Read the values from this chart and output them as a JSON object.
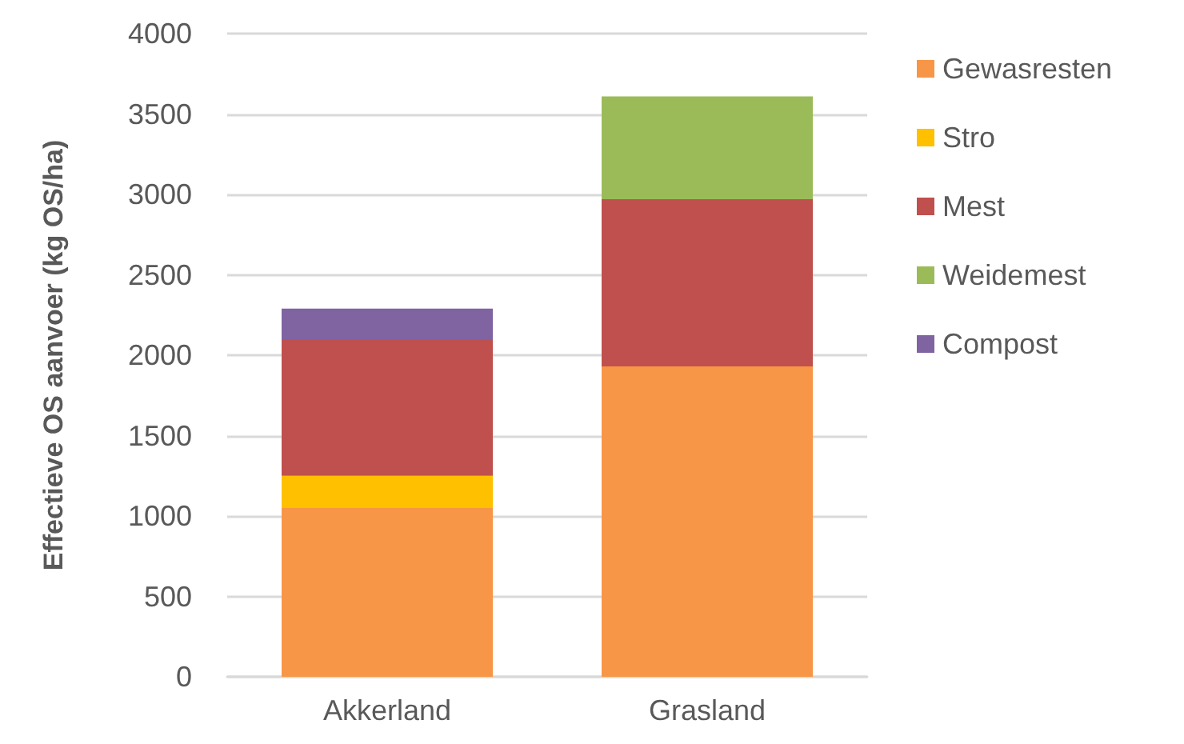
{
  "chart_data": {
    "type": "bar",
    "stacked": true,
    "ylabel": "Effectieve OS aanvoer (kg OS/ha)",
    "categories": [
      "Akkerland",
      "Grasland"
    ],
    "series": [
      {
        "name": "Gewasresten",
        "color": "#f79646",
        "values": [
          1050,
          1930
        ]
      },
      {
        "name": "Stro",
        "color": "#ffc000",
        "values": [
          200,
          null
        ]
      },
      {
        "name": "Mest",
        "color": "#c0504d",
        "values": [
          850,
          1040
        ]
      },
      {
        "name": "Weidemest",
        "color": "#9bbb59",
        "values": [
          null,
          640
        ]
      },
      {
        "name": "Compost",
        "color": "#8064a2",
        "values": [
          190,
          null
        ]
      }
    ],
    "ylim": [
      0,
      4000
    ],
    "yticks": [
      0,
      500,
      1000,
      1500,
      2000,
      2500,
      3000,
      3500,
      4000
    ],
    "grid": "y",
    "legend": "right"
  }
}
